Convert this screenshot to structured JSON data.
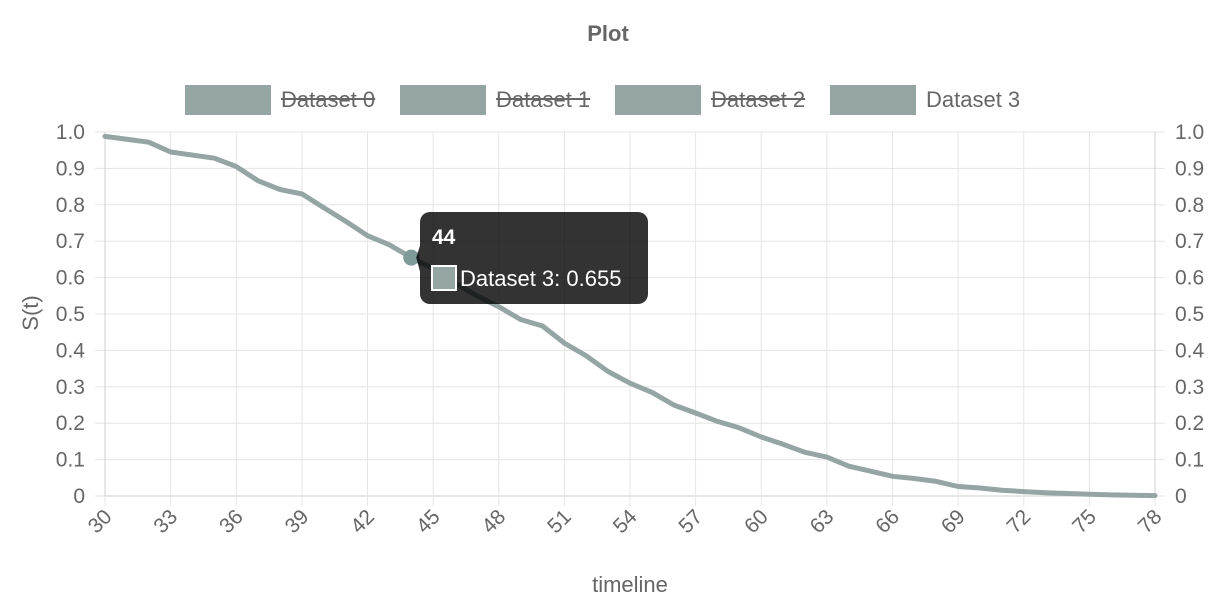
{
  "chart_data": {
    "type": "line",
    "title": "Plot",
    "xlabel": "timeline",
    "ylabel": "S(t)",
    "x_ticks": [
      "30",
      "33",
      "36",
      "39",
      "42",
      "45",
      "48",
      "51",
      "54",
      "57",
      "60",
      "63",
      "66",
      "69",
      "72",
      "75",
      "78"
    ],
    "y_ticks": [
      "0",
      "0.1",
      "0.2",
      "0.3",
      "0.4",
      "0.5",
      "0.6",
      "0.7",
      "0.8",
      "0.9",
      "1.0"
    ],
    "ylim": [
      0,
      1.0
    ],
    "xlim": [
      30,
      78
    ],
    "grid": true,
    "legend_position": "top",
    "colors": {
      "series": "#95a5a3",
      "grid": "#e5e5e5",
      "tooltip_bg": "#000000"
    },
    "series": [
      {
        "name": "Dataset 0",
        "hidden": true,
        "x": [],
        "y": []
      },
      {
        "name": "Dataset 1",
        "hidden": true,
        "x": [],
        "y": []
      },
      {
        "name": "Dataset 2",
        "hidden": true,
        "x": [],
        "y": []
      },
      {
        "name": "Dataset 3",
        "hidden": false,
        "x": [
          30,
          32,
          33,
          35,
          36,
          37,
          38,
          39,
          40,
          41,
          42,
          43,
          44,
          45,
          46,
          47,
          48,
          49,
          50,
          51,
          52,
          53,
          54,
          55,
          56,
          57,
          58,
          59,
          60,
          61,
          62,
          63,
          64,
          65,
          66,
          67,
          68,
          69,
          70,
          71,
          72,
          73,
          74,
          75,
          76,
          77,
          78
        ],
        "y": [
          0.988,
          0.972,
          0.945,
          0.928,
          0.905,
          0.866,
          0.842,
          0.83,
          0.792,
          0.755,
          0.715,
          0.69,
          0.655,
          0.625,
          0.585,
          0.55,
          0.52,
          0.485,
          0.467,
          0.42,
          0.385,
          0.342,
          0.31,
          0.285,
          0.25,
          0.228,
          0.205,
          0.187,
          0.162,
          0.142,
          0.12,
          0.107,
          0.082,
          0.068,
          0.054,
          0.048,
          0.04,
          0.026,
          0.022,
          0.016,
          0.012,
          0.009,
          0.007,
          0.005,
          0.003,
          0.002,
          0.001
        ]
      }
    ],
    "tooltip": {
      "title": "44",
      "label": "Dataset 3: 0.655",
      "x": 44,
      "y": 0.655
    }
  }
}
